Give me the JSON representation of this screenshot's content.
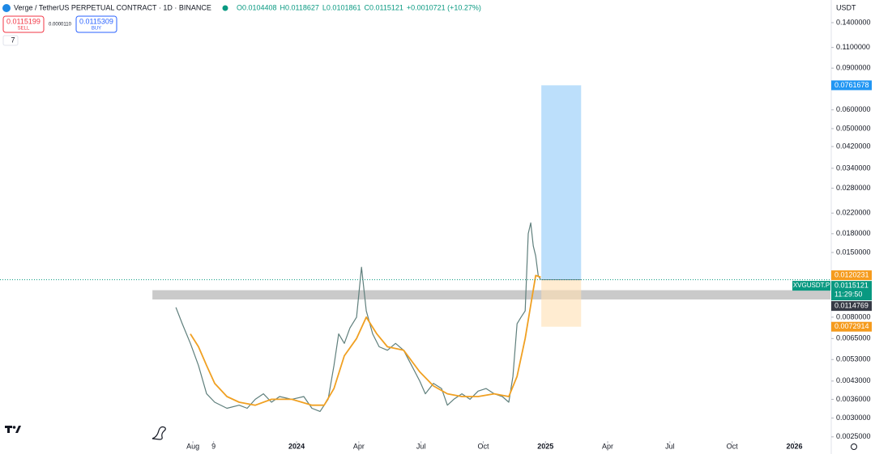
{
  "chart_data": {
    "type": "line",
    "header": {
      "symbol": "Verge / TetherUS PERPETUAL CONTRACT · 1D · BINANCE",
      "ohlc": [
        "O0.0104408",
        "H0.0118627",
        "L0.0101861",
        "C0.0115121",
        "+0.0010721 (+10.27%)"
      ],
      "sell_price": "0.0115199",
      "sell": "SELL",
      "spread": "0.0000110",
      "buy_price": "0.0115309",
      "buy": "BUY",
      "indicators": "7"
    },
    "currency": "USDT",
    "log_scale": true,
    "xlim": [
      -2.3,
      37.74
    ],
    "ylim": [
      0.0024,
      0.1745
    ],
    "xticks": [
      {
        "value": 7,
        "label": "Aug"
      },
      {
        "value": 8,
        "label": "9"
      },
      {
        "value": 12,
        "label": "2024"
      },
      {
        "value": 15,
        "label": "Apr"
      },
      {
        "value": 18,
        "label": "Jul"
      },
      {
        "value": 21,
        "label": "Oct"
      },
      {
        "value": 24,
        "label": "2025"
      },
      {
        "value": 27,
        "label": "Apr"
      },
      {
        "value": 30,
        "label": "Jul"
      },
      {
        "value": 33,
        "label": "Oct"
      },
      {
        "value": 36,
        "label": "2026"
      }
    ],
    "yticks": [
      {
        "value": 0.14,
        "label": "0.1400000"
      },
      {
        "value": 0.11,
        "label": "0.1100000"
      },
      {
        "value": 0.09,
        "label": "0.0900000"
      },
      {
        "value": 0.06,
        "label": "0.0600000"
      },
      {
        "value": 0.05,
        "label": "0.0500000"
      },
      {
        "value": 0.042,
        "label": "0.0420000"
      },
      {
        "value": 0.034,
        "label": "0.0340000"
      },
      {
        "value": 0.028,
        "label": "0.0280000"
      },
      {
        "value": 0.022,
        "label": "0.0220000"
      },
      {
        "value": 0.018,
        "label": "0.0180000"
      },
      {
        "value": 0.015,
        "label": "0.0150000"
      },
      {
        "value": 0.008,
        "label": "0.0080000"
      },
      {
        "value": 0.0065,
        "label": "0.0065000"
      },
      {
        "value": 0.0053,
        "label": "0.0053000"
      },
      {
        "value": 0.0043,
        "label": "0.0043000"
      },
      {
        "value": 0.0036,
        "label": "0.0036000"
      },
      {
        "value": 0.003,
        "label": "0.0030000"
      },
      {
        "value": 0.0025,
        "label": "0.0025000"
      }
    ],
    "series": [
      {
        "name": "XVGUSDT.P",
        "color": "#5f7f7c",
        "x": [
          6.18,
          6.49,
          6.88,
          7.27,
          7.66,
          8.05,
          8.64,
          9.23,
          9.62,
          10.01,
          10.4,
          10.79,
          11.18,
          11.77,
          12.35,
          12.74,
          13.13,
          13.52,
          13.8,
          14.03,
          14.3,
          14.57,
          14.89,
          15.13,
          15.36,
          15.67,
          15.98,
          16.38,
          16.77,
          17.16,
          17.55,
          17.94,
          18.21,
          18.6,
          18.99,
          19.27,
          19.58,
          19.97,
          20.36,
          20.75,
          21.14,
          21.53,
          21.92,
          22.23,
          22.43,
          22.63,
          22.82,
          23.02,
          23.17,
          23.29,
          23.41,
          23.53,
          23.65,
          23.77
        ],
        "values": [
          0.0088,
          0.0075,
          0.0062,
          0.005,
          0.0038,
          0.0035,
          0.0033,
          0.0034,
          0.0033,
          0.0036,
          0.0038,
          0.0035,
          0.0037,
          0.0036,
          0.0037,
          0.0033,
          0.0032,
          0.0036,
          0.005,
          0.0068,
          0.0062,
          0.0072,
          0.008,
          0.013,
          0.0085,
          0.0068,
          0.006,
          0.0058,
          0.0062,
          0.0058,
          0.005,
          0.0043,
          0.0038,
          0.0042,
          0.004,
          0.0034,
          0.0036,
          0.0038,
          0.0036,
          0.0039,
          0.004,
          0.0038,
          0.0037,
          0.0035,
          0.0045,
          0.0075,
          0.008,
          0.0085,
          0.018,
          0.02,
          0.016,
          0.0145,
          0.012,
          0.0115121
        ]
      },
      {
        "name": "MA",
        "color": "#f0a022",
        "x": [
          6.88,
          7.27,
          7.66,
          8.05,
          8.64,
          9.23,
          10.01,
          10.79,
          11.77,
          12.74,
          13.33,
          13.8,
          14.3,
          14.89,
          15.36,
          15.87,
          16.38,
          17.16,
          17.94,
          18.6,
          19.27,
          19.97,
          20.75,
          21.53,
          22.23,
          22.63,
          23.02,
          23.29,
          23.53,
          23.77
        ],
        "values": [
          0.0068,
          0.006,
          0.005,
          0.0042,
          0.0037,
          0.0035,
          0.0034,
          0.0036,
          0.0036,
          0.0034,
          0.0034,
          0.004,
          0.0055,
          0.0065,
          0.008,
          0.0068,
          0.006,
          0.0058,
          0.0047,
          0.0041,
          0.0038,
          0.0037,
          0.0037,
          0.0038,
          0.0037,
          0.0045,
          0.0065,
          0.009,
          0.012,
          0.0118
        ]
      }
    ],
    "zone": {
      "x": 5.05,
      "values": [
        0.0095,
        0.0104
      ]
    },
    "position": {
      "x": [
        23.8,
        25.72
      ],
      "target": 0.0761678,
      "entry": 0.0115121,
      "stop": 0.0072914
    },
    "price_labels": [
      {
        "value": 0.0761678,
        "color": "#2196f3"
      },
      {
        "value": 0.0120231,
        "color": "#f59b1d"
      },
      {
        "value": 0.0115121,
        "color": "#089981",
        "ticker": "XVGUSDT.P",
        "timer": "11:29:50"
      },
      {
        "value": 0.0114769,
        "color": "#363a45"
      },
      {
        "value": 0.0072914,
        "color": "#f59b1d"
      }
    ]
  }
}
